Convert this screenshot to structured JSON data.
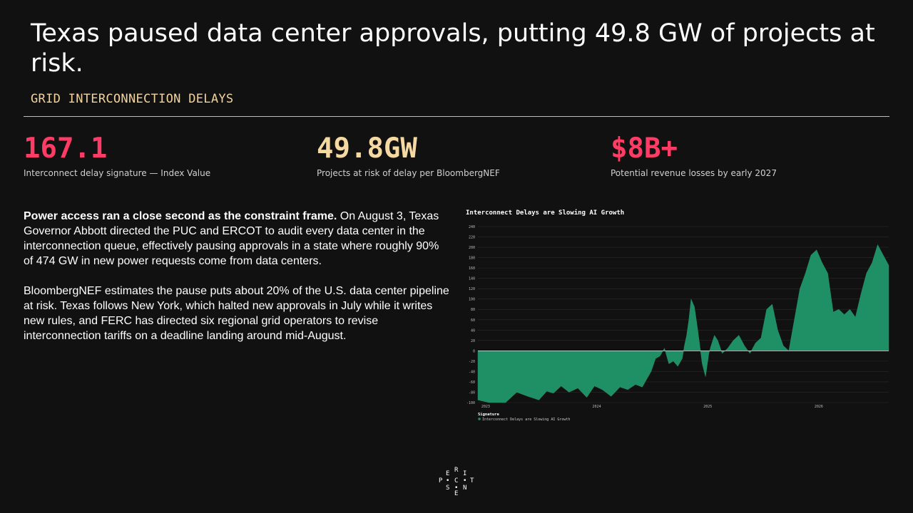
{
  "header": {
    "title": "Texas paused data center approvals, putting 49.8 GW of projects at risk.",
    "subtitle": "GRID INTERCONNECTION DELAYS"
  },
  "stats": [
    {
      "value": "167.1",
      "label": "Interconnect delay signature — Index Value",
      "color": "#ff3b66"
    },
    {
      "value": "49.8GW",
      "label": "Projects at risk of delay per BloombergNEF",
      "color": "#f5d9a1"
    },
    {
      "value": "$8B+",
      "label": "Potential revenue losses by early 2027",
      "color": "#ff3b66"
    }
  ],
  "body": {
    "p1_lead": "Power access ran a close second as the constraint frame.",
    "p1_rest": " On August 3, Texas Governor Abbott directed the PUC and ERCOT to audit every data center in the interconnection queue, effectively pausing approvals in a state where roughly 90% of 474 GW in new power requests come from data centers.",
    "p2": "BloombergNEF estimates the pause puts about 20% of the U.S. data center pipeline at risk. Texas follows New York, which halted new approvals in July while it writes new rules, and FERC has directed six regional grid operators to revise interconnection tariffs on a deadline landing around mid-August."
  },
  "logo": {
    "letters": [
      "R",
      "E",
      "I",
      "P",
      "C",
      "T",
      "S",
      "N",
      "E"
    ]
  },
  "chart_data": {
    "type": "area",
    "title": "Interconnect Delays are Slowing AI Growth",
    "ylim": [
      -100,
      240
    ],
    "yticks": [
      -100,
      -80,
      -60,
      -40,
      -20,
      0,
      20,
      40,
      60,
      80,
      100,
      120,
      140,
      160,
      180,
      200,
      220,
      240
    ],
    "xlim": [
      2023.0,
      2026.7
    ],
    "xticks": [
      {
        "label": "2023",
        "value": 2023.07
      },
      {
        "label": "2024",
        "value": 2024.07
      },
      {
        "label": "2025",
        "value": 2025.07
      },
      {
        "label": "2026",
        "value": 2026.07
      }
    ],
    "grid": true,
    "legend_title": "Signature",
    "color": "#1f8f66",
    "series": [
      {
        "name": "Interconnect Delays are Slowing AI Growth",
        "x": [
          2023.0,
          2023.1,
          2023.18,
          2023.25,
          2023.35,
          2023.45,
          2023.55,
          2023.62,
          2023.68,
          2023.75,
          2023.82,
          2023.9,
          2023.98,
          2024.05,
          2024.12,
          2024.2,
          2024.28,
          2024.35,
          2024.42,
          2024.48,
          2024.52,
          2024.56,
          2024.6,
          2024.64,
          2024.68,
          2024.72,
          2024.76,
          2024.8,
          2024.84,
          2024.86,
          2024.88,
          2024.9,
          2024.92,
          2024.95,
          2024.98,
          2025.02,
          2025.05,
          2025.08,
          2025.1,
          2025.13,
          2025.16,
          2025.2,
          2025.25,
          2025.3,
          2025.35,
          2025.4,
          2025.45,
          2025.5,
          2025.55,
          2025.6,
          2025.65,
          2025.7,
          2025.75,
          2025.8,
          2025.85,
          2025.9,
          2025.95,
          2026.0,
          2026.05,
          2026.1,
          2026.15,
          2026.2,
          2026.25,
          2026.3,
          2026.35,
          2026.4,
          2026.45,
          2026.5,
          2026.55,
          2026.6,
          2026.65,
          2026.7
        ],
        "y": [
          -95,
          -100,
          -100,
          -100,
          -80,
          -88,
          -95,
          -78,
          -82,
          -68,
          -80,
          -72,
          -90,
          -68,
          -75,
          -88,
          -70,
          -75,
          -65,
          -70,
          -55,
          -40,
          -15,
          -10,
          5,
          -25,
          -20,
          -30,
          -15,
          10,
          30,
          60,
          100,
          85,
          40,
          -25,
          -50,
          -5,
          10,
          30,
          20,
          -5,
          5,
          20,
          30,
          10,
          -5,
          15,
          25,
          80,
          90,
          40,
          10,
          0,
          60,
          120,
          150,
          185,
          195,
          170,
          150,
          75,
          80,
          70,
          80,
          65,
          110,
          150,
          170,
          205,
          185,
          165
        ]
      }
    ]
  }
}
